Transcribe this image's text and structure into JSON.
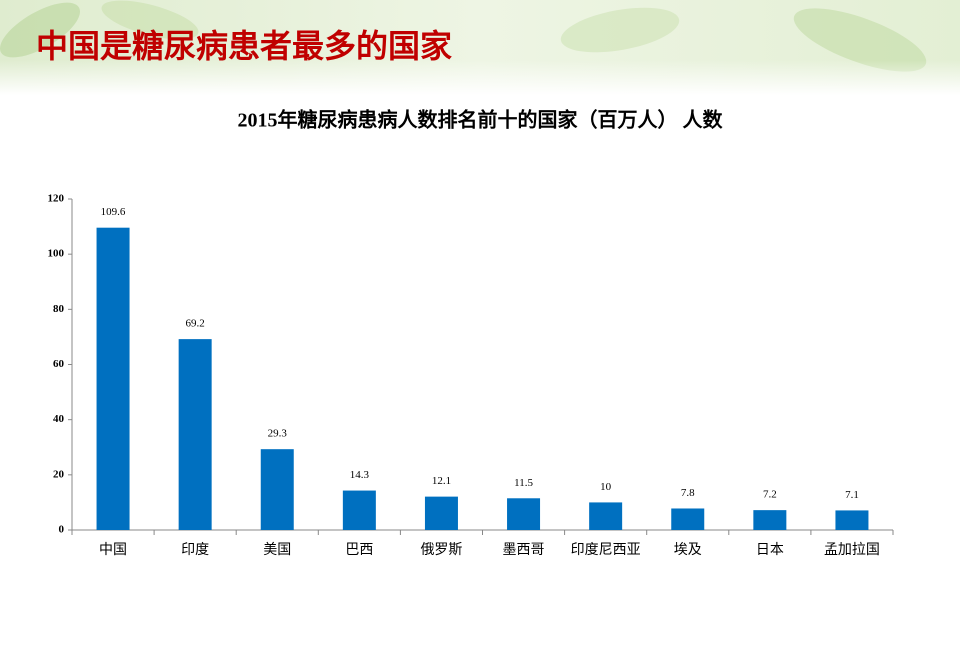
{
  "slide_title": "中国是糖尿病患者最多的国家",
  "chart_data": {
    "type": "bar",
    "title": "2015年糖尿病患病人数排名前十的国家（百万人） 人数",
    "categories": [
      "中国",
      "印度",
      "美国",
      "巴西",
      "俄罗斯",
      "墨西哥",
      "印度尼西亚",
      "埃及",
      "日本",
      "孟加拉国"
    ],
    "values": [
      109.6,
      69.2,
      29.3,
      14.3,
      12.1,
      11.5,
      10,
      7.8,
      7.2,
      7.1
    ],
    "color": "#0070c0",
    "ylim": [
      0,
      120
    ],
    "yticks": [
      0,
      20,
      40,
      60,
      80,
      100,
      120
    ],
    "grid": false
  }
}
